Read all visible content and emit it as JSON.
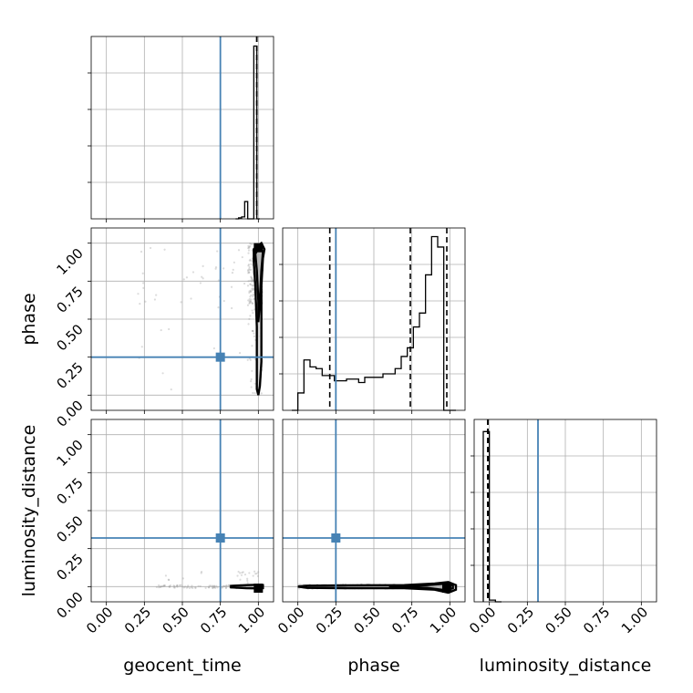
{
  "chart_data": {
    "type": "corner",
    "parameters": [
      "geocent_time",
      "phase",
      "luminosity_distance"
    ],
    "axis_labels": {
      "x": [
        "geocent_time",
        "phase",
        "luminosity_distance"
      ],
      "y": [
        "",
        "phase",
        "luminosity_distance"
      ]
    },
    "tick_labels": [
      "0.00",
      "0.25",
      "0.50",
      "0.75",
      "1.00"
    ],
    "axis_range": [
      -0.1,
      1.1
    ],
    "grid": true,
    "truths": [
      0.75,
      0.25,
      0.32
    ],
    "colors": {
      "truth": "#4682b4",
      "hist": "#000000",
      "points": "#9a9a9a",
      "quantile": "#000000"
    },
    "diagonal": [
      {
        "parameter": "geocent_time",
        "bin_edges": [
          0.85,
          0.87,
          0.89,
          0.91,
          0.93,
          0.95,
          0.97,
          0.99,
          1.01
        ],
        "heights": [
          0,
          0.005,
          0.01,
          0.09,
          0,
          0,
          0.9,
          0
        ],
        "ylim": [
          0,
          0.95
        ],
        "quantiles": [
          0.99,
          0.99,
          0.99
        ]
      },
      {
        "parameter": "phase",
        "bin_edges": [
          -0.04,
          0.0,
          0.04,
          0.08,
          0.12,
          0.16,
          0.2,
          0.24,
          0.28,
          0.32,
          0.36,
          0.4,
          0.44,
          0.48,
          0.52,
          0.56,
          0.6,
          0.64,
          0.68,
          0.72,
          0.76,
          0.8,
          0.84,
          0.88,
          0.92,
          0.96,
          1.0,
          1.04
        ],
        "heights": [
          0,
          0.1,
          0.29,
          0.25,
          0.24,
          0.2,
          0.2,
          0.17,
          0.17,
          0.18,
          0.18,
          0.16,
          0.19,
          0.19,
          0.19,
          0.21,
          0.21,
          0.24,
          0.31,
          0.36,
          0.48,
          0.56,
          0.78,
          1.0,
          0.94,
          0,
          0
        ],
        "heights_note": "",
        "ylim": [
          0,
          1.05
        ],
        "quantiles": [
          0.21,
          0.74,
          0.98
        ]
      },
      {
        "parameter": "luminosity_distance",
        "bin_edges": [
          -0.04,
          0.0,
          0.04,
          0.08
        ],
        "heights": [
          0.98,
          0.01,
          0
        ],
        "ylim": [
          0,
          1.05
        ],
        "quantiles": [
          -0.01,
          -0.01,
          -0.01
        ]
      }
    ],
    "scatter": [
      {
        "x": "geocent_time",
        "y": "phase",
        "contours": [
          [
            [
              1.0,
              0.0
            ],
            [
              1.01,
              0.06
            ],
            [
              1.02,
              0.22
            ],
            [
              1.02,
              0.48
            ],
            [
              1.02,
              0.72
            ],
            [
              1.03,
              0.9
            ],
            [
              1.04,
              0.96
            ],
            [
              1.02,
              1.0
            ],
            [
              0.97,
              0.96
            ],
            [
              0.97,
              0.88
            ],
            [
              0.98,
              0.72
            ],
            [
              0.99,
              0.45
            ],
            [
              0.99,
              0.2
            ],
            [
              0.99,
              0.04
            ],
            [
              1.0,
              0.0
            ]
          ],
          [
            [
              1.0,
              0.48
            ],
            [
              1.01,
              0.62
            ],
            [
              1.02,
              0.82
            ],
            [
              1.03,
              0.94
            ],
            [
              1.01,
              0.98
            ],
            [
              0.98,
              0.93
            ],
            [
              0.99,
              0.82
            ],
            [
              1.0,
              0.62
            ],
            [
              1.0,
              0.48
            ]
          ]
        ],
        "core": [
          1.0,
          0.97
        ]
      },
      {
        "x": "geocent_time",
        "y": "luminosity_distance",
        "contours": [
          [
            [
              0.82,
              -0.005
            ],
            [
              0.92,
              -0.01
            ],
            [
              1.0,
              -0.012
            ],
            [
              1.03,
              -0.01
            ],
            [
              1.03,
              0.01
            ],
            [
              1.0,
              0.012
            ],
            [
              0.92,
              0.01
            ],
            [
              0.82,
              0.005
            ],
            [
              0.82,
              -0.005
            ]
          ]
        ],
        "core": [
          1.0,
          -0.01
        ]
      },
      {
        "x": "phase",
        "y": "luminosity_distance",
        "contours": [
          [
            [
              0.0,
              0.0
            ],
            [
              0.06,
              -0.008
            ],
            [
              0.3,
              -0.01
            ],
            [
              0.7,
              -0.01
            ],
            [
              0.9,
              -0.02
            ],
            [
              0.99,
              -0.04
            ],
            [
              1.04,
              -0.02
            ],
            [
              1.04,
              0.01
            ],
            [
              0.99,
              0.03
            ],
            [
              0.9,
              0.02
            ],
            [
              0.7,
              0.01
            ],
            [
              0.3,
              0.008
            ],
            [
              0.06,
              0.006
            ],
            [
              0.0,
              0.0
            ]
          ],
          [
            [
              0.6,
              0.0
            ],
            [
              0.85,
              -0.008
            ],
            [
              0.98,
              -0.025
            ],
            [
              1.02,
              -0.01
            ],
            [
              1.02,
              0.008
            ],
            [
              0.97,
              0.02
            ],
            [
              0.85,
              0.01
            ],
            [
              0.6,
              0.0
            ]
          ]
        ],
        "core": [
          0.98,
          -0.01
        ]
      }
    ]
  }
}
